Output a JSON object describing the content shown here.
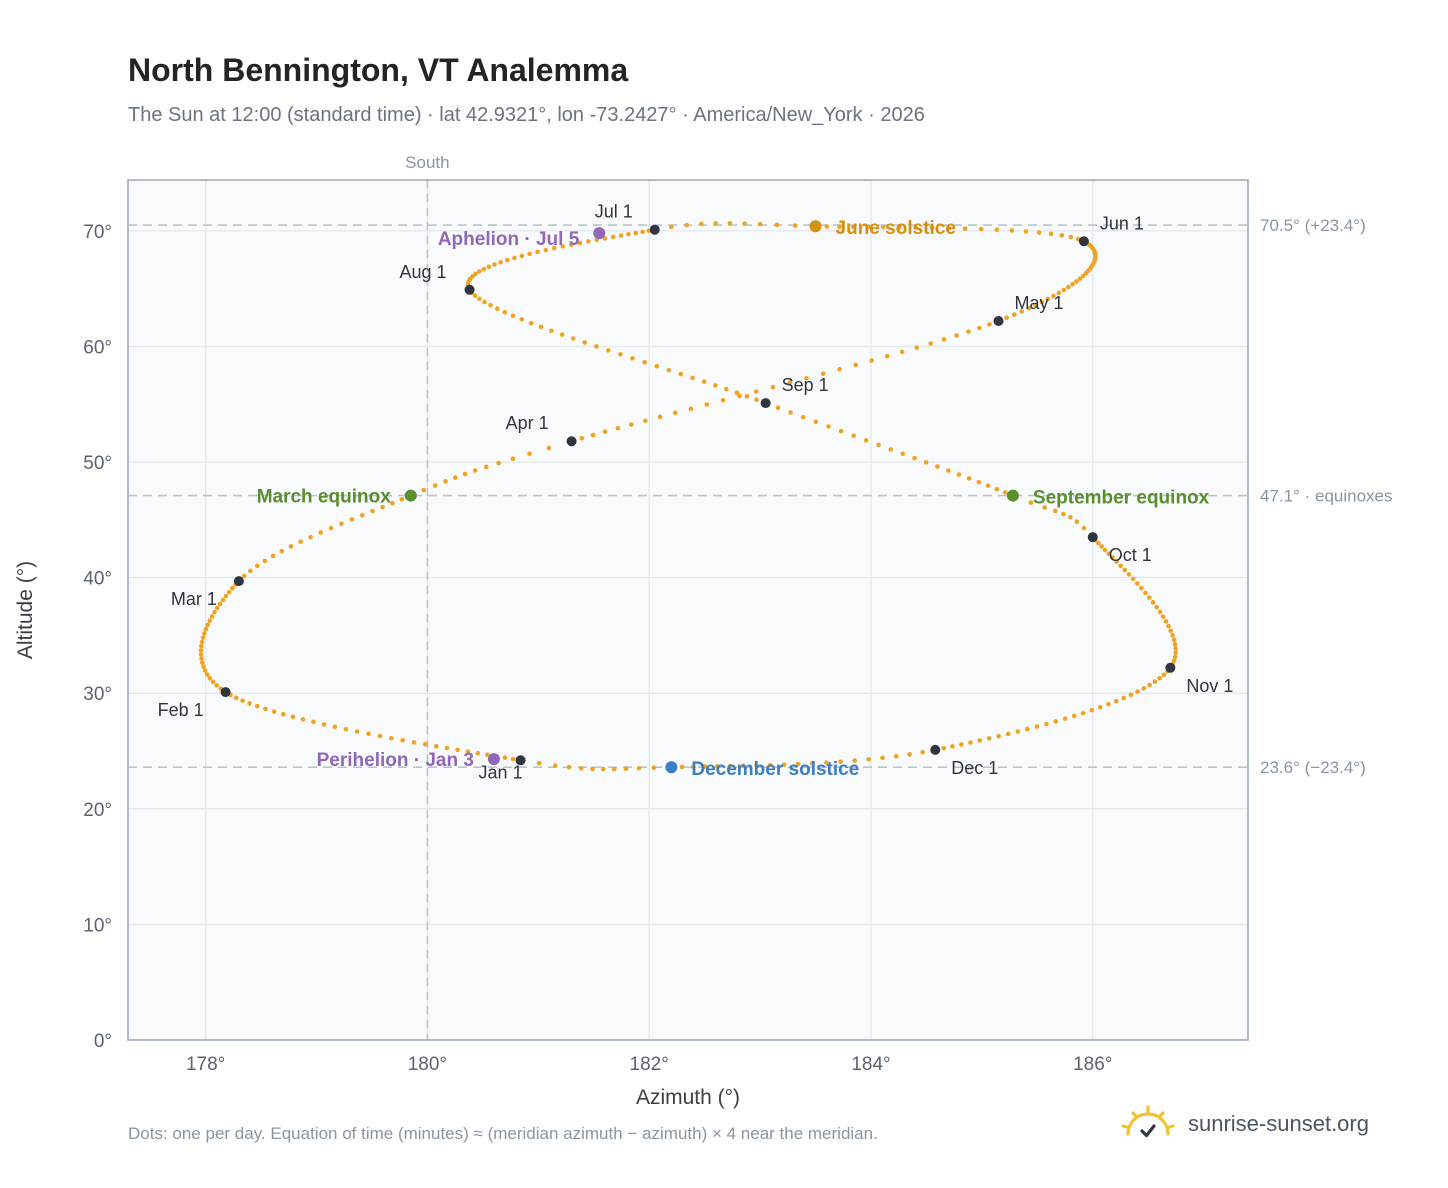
{
  "header": {
    "title": "North Bennington, VT Analemma",
    "subtitle": "The Sun at 12:00 (standard time) · lat 42.9321°, lon -73.2427° · America/New_York · 2026"
  },
  "footer": {
    "note": "Dots: one per day. Equation of time (minutes) ≈ (meridian azimuth − azimuth) × 4 near the meridian.",
    "brand": "sunrise-sunset.org"
  },
  "colors": {
    "path": "#f0a323",
    "month_marker": "#2f3640",
    "equinox": "#5a8f2e",
    "june_solstice": "#d4900e",
    "december_solstice": "#3a7ec4",
    "apsis": "#9168b8",
    "plot_bg": "#f8fafc",
    "grid": "#e3e8ef",
    "reference_line": "#b8c4d0"
  },
  "chart_data": {
    "type": "scatter",
    "title": "North Bennington, VT Analemma",
    "xlabel": "Azimuth (°)",
    "ylabel": "Altitude (°)",
    "xlim": [
      177.3,
      187.4
    ],
    "ylim": [
      0,
      74.4
    ],
    "x_ticks": [
      178,
      180,
      182,
      184,
      186
    ],
    "x_tick_labels": [
      "178°",
      "180°",
      "182°",
      "184°",
      "186°"
    ],
    "y_ticks": [
      0,
      10,
      20,
      30,
      40,
      50,
      60,
      70
    ],
    "y_tick_labels": [
      "0°",
      "10°",
      "20°",
      "30°",
      "40°",
      "50°",
      "60°",
      "70°"
    ],
    "grid": true,
    "meridian": {
      "azimuth": 180,
      "label": "South"
    },
    "reference_lines": [
      {
        "altitude": 70.5,
        "label": "70.5° (+23.4°)"
      },
      {
        "altitude": 47.1,
        "label": "47.1° · equinoxes"
      },
      {
        "altitude": 23.6,
        "label": "23.6° (−23.4°)"
      }
    ],
    "daily_path_anchors": [
      {
        "day": 0,
        "az": 180.84,
        "alt": 24.2
      },
      {
        "day": 31,
        "az": 178.18,
        "alt": 30.1
      },
      {
        "day": 59,
        "az": 178.3,
        "alt": 39.7
      },
      {
        "day": 78,
        "az": 179.85,
        "alt": 47.1
      },
      {
        "day": 90,
        "az": 181.3,
        "alt": 51.8
      },
      {
        "day": 120,
        "az": 185.15,
        "alt": 62.2
      },
      {
        "day": 151,
        "az": 185.92,
        "alt": 69.1
      },
      {
        "day": 171,
        "az": 183.5,
        "alt": 70.4
      },
      {
        "day": 181,
        "az": 182.05,
        "alt": 70.1
      },
      {
        "day": 212,
        "az": 180.38,
        "alt": 64.9
      },
      {
        "day": 243,
        "az": 183.05,
        "alt": 55.1
      },
      {
        "day": 265,
        "az": 185.28,
        "alt": 47.1
      },
      {
        "day": 273,
        "az": 186.0,
        "alt": 43.5
      },
      {
        "day": 304,
        "az": 186.7,
        "alt": 32.2
      },
      {
        "day": 334,
        "az": 184.58,
        "alt": 25.1
      },
      {
        "day": 354,
        "az": 182.2,
        "alt": 23.6
      },
      {
        "day": 365,
        "az": 180.84,
        "alt": 24.2
      }
    ],
    "month_markers": [
      {
        "label": "Jan 1",
        "az": 180.84,
        "alt": 24.2
      },
      {
        "label": "Feb 1",
        "az": 178.18,
        "alt": 30.1
      },
      {
        "label": "Mar 1",
        "az": 178.3,
        "alt": 39.7
      },
      {
        "label": "Apr 1",
        "az": 181.3,
        "alt": 51.8
      },
      {
        "label": "May 1",
        "az": 185.15,
        "alt": 62.2
      },
      {
        "label": "Jun 1",
        "az": 185.92,
        "alt": 69.1
      },
      {
        "label": "Jul 1",
        "az": 182.05,
        "alt": 70.1
      },
      {
        "label": "Aug 1",
        "az": 180.38,
        "alt": 64.9
      },
      {
        "label": "Sep 1",
        "az": 183.05,
        "alt": 55.1
      },
      {
        "label": "Oct 1",
        "az": 186.0,
        "alt": 43.5
      },
      {
        "label": "Nov 1",
        "az": 186.7,
        "alt": 32.2
      },
      {
        "label": "Dec 1",
        "az": 184.58,
        "alt": 25.1
      }
    ],
    "events": [
      {
        "label": "March equinox",
        "az": 179.85,
        "alt": 47.1,
        "kind": "equinox"
      },
      {
        "label": "September equinox",
        "az": 185.28,
        "alt": 47.1,
        "kind": "equinox"
      },
      {
        "label": "June solstice",
        "az": 183.5,
        "alt": 70.4,
        "kind": "june_solstice"
      },
      {
        "label": "December solstice",
        "az": 182.2,
        "alt": 23.6,
        "kind": "december_solstice"
      },
      {
        "label": "Aphelion · Jul 5",
        "az": 181.55,
        "alt": 69.8,
        "kind": "apsis"
      },
      {
        "label": "Perihelion · Jan 3",
        "az": 180.6,
        "alt": 24.3,
        "kind": "apsis"
      }
    ]
  }
}
